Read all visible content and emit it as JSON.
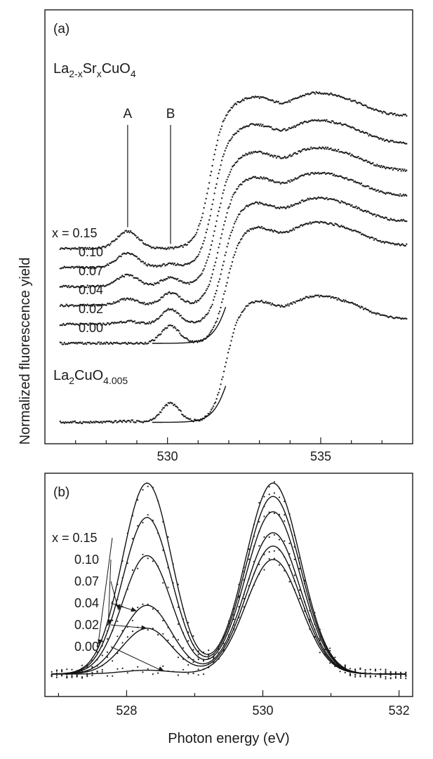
{
  "chart_data": [
    {
      "panel": "(a)",
      "type": "line",
      "title": "La2-xSrxCuO4",
      "title_parts": [
        "La",
        "2-x",
        "Sr",
        "x",
        "CuO",
        "4"
      ],
      "xlabel": "",
      "ylabel": "Normalized fluorescence yield",
      "xlim": [
        526.0,
        538.0
      ],
      "x_ticks": [
        530,
        535
      ],
      "x_tick_labels": [
        "530",
        "535"
      ],
      "peak_labels": [
        {
          "label": "A",
          "x": 528.7
        },
        {
          "label": "B",
          "x": 530.1
        }
      ],
      "reference_label": "La2CuO4.005",
      "reference_label_parts": [
        "La",
        "2",
        "CuO",
        "4.005"
      ],
      "series": [
        {
          "name": "x = 0.15",
          "x_value": 0.15,
          "base": 0.9,
          "peakA": 0.58,
          "peakB": 0.0,
          "edge": 531.4,
          "plateau": 1.38
        },
        {
          "name": "0.10",
          "x_value": 0.1,
          "base": 0.72,
          "peakA": 0.48,
          "peakB": 0.1,
          "edge": 531.5,
          "plateau": 1.3
        },
        {
          "name": "0.07",
          "x_value": 0.07,
          "base": 0.54,
          "peakA": 0.38,
          "peakB": 0.28,
          "edge": 531.6,
          "plateau": 1.22
        },
        {
          "name": "0.04",
          "x_value": 0.04,
          "base": 0.36,
          "peakA": 0.22,
          "peakB": 0.4,
          "edge": 531.7,
          "plateau": 1.16
        },
        {
          "name": "0.02",
          "x_value": 0.02,
          "base": 0.18,
          "peakA": 0.1,
          "peakB": 0.48,
          "edge": 531.8,
          "plateau": 1.1
        },
        {
          "name": "0.00",
          "x_value": 0.0,
          "base": 0.0,
          "peakA": 0.0,
          "peakB": 0.55,
          "edge": 531.9,
          "plateau": 1.05
        }
      ],
      "reference_series": {
        "name": "La2CuO4.005",
        "base": -0.75,
        "peakA": 0.04,
        "peakB": 0.6,
        "edge": 531.9,
        "plateau": 1.1
      }
    },
    {
      "panel": "(b)",
      "type": "line",
      "title": "",
      "xlabel": "Photon energy (eV)",
      "ylabel": "",
      "xlim": [
        526.8,
        532.2
      ],
      "ylim": [
        -0.02,
        1.05
      ],
      "x_ticks": [
        528,
        530,
        532
      ],
      "x_tick_labels": [
        "528",
        "530",
        "532"
      ],
      "isosbestic_point": 529.55,
      "series": [
        {
          "name": "x = 0.15",
          "peakA": 1.0,
          "peakB": 1.0,
          "arrow_x": 527.6
        },
        {
          "name": "0.10",
          "peakA": 0.82,
          "peakB": 0.93,
          "arrow_x": 527.75
        },
        {
          "name": "0.07",
          "peakA": 0.62,
          "peakB": 0.85,
          "arrow_x": 527.9
        },
        {
          "name": "0.04",
          "peakA": 0.36,
          "peakB": 0.74,
          "arrow_x": 528.15
        },
        {
          "name": "0.02",
          "peakA": 0.24,
          "peakB": 0.67,
          "arrow_x": 528.3
        },
        {
          "name": "0.00",
          "peakA": 0.02,
          "peakB": 0.6,
          "arrow_x": 528.55
        }
      ]
    }
  ]
}
